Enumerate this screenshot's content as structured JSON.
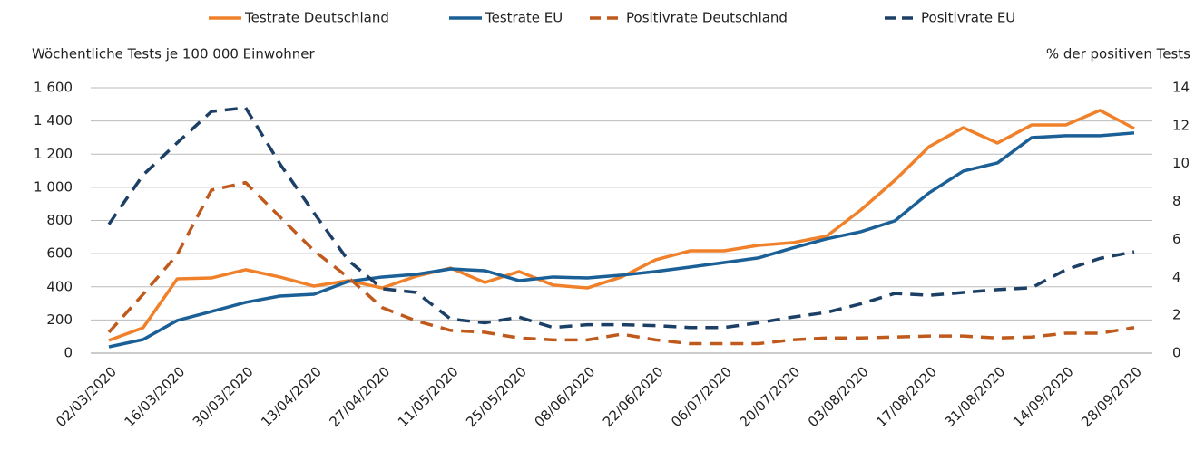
{
  "chart_data": {
    "type": "line",
    "ylabel": "Wöchentliche Tests je 100 000 Einwohner",
    "y2label": "% der positiven Tests",
    "categories": [
      "02/03/2020",
      null,
      "16/03/2020",
      null,
      "30/03/2020",
      null,
      "13/04/2020",
      null,
      "27/04/2020",
      null,
      "11/05/2020",
      null,
      "25/05/2020",
      null,
      "08/06/2020",
      null,
      "22/06/2020",
      null,
      "06/07/2020",
      null,
      "20/07/2020",
      null,
      "03/08/2020",
      null,
      "17/08/2020",
      null,
      "31/08/2020",
      null,
      "14/09/2020",
      null,
      "28/09/2020"
    ],
    "series": [
      {
        "name": "Testrate Deutschland",
        "color": "#f0812a",
        "dashed": false,
        "values": [
          77,
          153,
          448,
          453,
          503,
          459,
          404,
          437,
          393,
          464,
          513,
          426,
          492,
          410,
          393,
          459,
          563,
          617,
          617,
          650,
          666,
          705,
          863,
          1043,
          1245,
          1360,
          1267,
          1376,
          1376,
          1464,
          1355
        ]
      },
      {
        "name": "Testrate EU",
        "color": "#1a5f96",
        "dashed": false,
        "values": [
          38,
          82,
          197,
          251,
          306,
          344,
          355,
          432,
          459,
          475,
          508,
          497,
          437,
          459,
          453,
          470,
          492,
          519,
          546,
          574,
          634,
          689,
          732,
          798,
          967,
          1098,
          1147,
          1300,
          1311,
          1311,
          1328
        ]
      },
      {
        "name": "Positivrate Deutschland",
        "color": "#c05a1c",
        "dashed": true,
        "axis": "y2",
        "values": [
          1.1,
          3.1,
          5.2,
          8.6,
          9.0,
          7.2,
          5.4,
          4.0,
          2.4,
          1.7,
          1.2,
          1.1,
          0.8,
          0.7,
          0.7,
          1.0,
          0.7,
          0.5,
          0.5,
          0.5,
          0.7,
          0.8,
          0.8,
          0.85,
          0.9,
          0.9,
          0.8,
          0.85,
          1.05,
          1.05,
          1.35
        ]
      },
      {
        "name": "Positivrate EU",
        "color": "#1c3f66",
        "dashed": true,
        "axis": "y2",
        "values": [
          6.8,
          9.4,
          11.1,
          12.75,
          12.95,
          10.0,
          7.4,
          4.9,
          3.4,
          3.2,
          1.8,
          1.6,
          1.9,
          1.35,
          1.5,
          1.5,
          1.45,
          1.35,
          1.35,
          1.6,
          1.9,
          2.15,
          2.6,
          3.15,
          3.05,
          3.2,
          3.35,
          3.45,
          4.4,
          5.0,
          5.35
        ]
      }
    ],
    "ylim": [
      0,
      1600
    ],
    "yticks": [
      0,
      200,
      400,
      600,
      800,
      {
        "value": 1000,
        "label": "1 000"
      },
      {
        "value": 1200,
        "label": "1 200"
      },
      {
        "value": 1400,
        "label": "1 400"
      },
      {
        "value": 1600,
        "label": "1 600"
      }
    ],
    "y2lim": [
      0,
      14
    ],
    "y2ticks": [
      0,
      2,
      4,
      6,
      8,
      10,
      12,
      14
    ],
    "grid": true,
    "legend": "top"
  }
}
